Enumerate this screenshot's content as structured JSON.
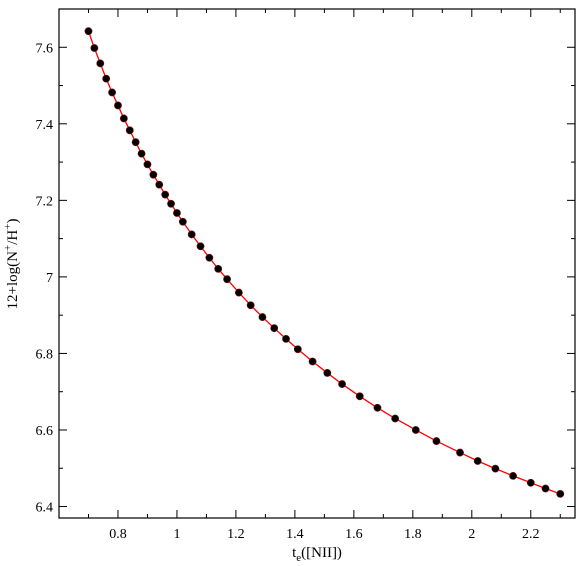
{
  "chart_data": {
    "type": "scatter",
    "title": "",
    "xlabel": {
      "main": "t",
      "sub": "e",
      "suffix": "([NII])"
    },
    "ylabel": {
      "prefix": "12+log(N",
      "sup1": "+",
      "mid": "/H",
      "sup2": "+",
      "suffix": ")"
    },
    "xlim": [
      0.6,
      2.35
    ],
    "ylim": [
      6.37,
      7.7
    ],
    "xticks": [
      0.8,
      1,
      1.2,
      1.4,
      1.6,
      1.8,
      2,
      2.2
    ],
    "xtick_labels": [
      "0.8",
      "1",
      "1.2",
      "1.4",
      "1.6",
      "1.8",
      "2",
      "2.2"
    ],
    "yticks": [
      6.4,
      6.6,
      6.8,
      7,
      7.2,
      7.4,
      7.6
    ],
    "ytick_labels": [
      "6.4",
      "6.6",
      "6.8",
      "7",
      "7.2",
      "7.4",
      "7.6"
    ],
    "grid": false,
    "colors": {
      "points": "#000000",
      "line": "#ff0000",
      "axes": "#000000"
    },
    "series": [
      {
        "style": "points-with-curve",
        "x": [
          0.7,
          0.72,
          0.74,
          0.76,
          0.78,
          0.8,
          0.82,
          0.84,
          0.86,
          0.88,
          0.9,
          0.92,
          0.94,
          0.96,
          0.98,
          1.0,
          1.02,
          1.05,
          1.08,
          1.11,
          1.14,
          1.17,
          1.21,
          1.25,
          1.29,
          1.33,
          1.37,
          1.41,
          1.46,
          1.51,
          1.56,
          1.62,
          1.68,
          1.74,
          1.81,
          1.88,
          1.96,
          2.02,
          2.08,
          2.14,
          2.2,
          2.25,
          2.3
        ],
        "y": [
          7.642,
          7.598,
          7.558,
          7.518,
          7.482,
          7.448,
          7.414,
          7.383,
          7.352,
          7.322,
          7.294,
          7.267,
          7.241,
          7.215,
          7.191,
          7.167,
          7.144,
          7.111,
          7.08,
          7.05,
          7.021,
          6.994,
          6.959,
          6.926,
          6.895,
          6.866,
          6.838,
          6.811,
          6.779,
          6.749,
          6.72,
          6.688,
          6.658,
          6.63,
          6.6,
          6.571,
          6.541,
          6.519,
          6.499,
          6.48,
          6.462,
          6.447,
          6.433
        ]
      }
    ]
  }
}
